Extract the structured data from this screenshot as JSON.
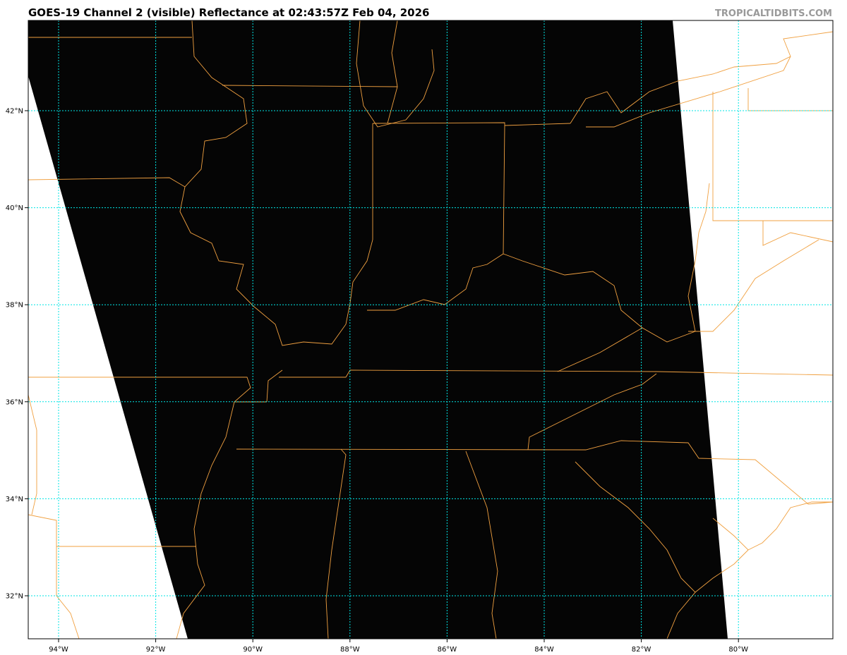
{
  "header": {
    "title": "GOES-19 Channel 2 (visible) Reflectance at 02:43:57Z Feb 04, 2026",
    "credit": "TROPICALTIDBITS.COM"
  },
  "map": {
    "satellite": "GOES-19",
    "channel": "Channel 2 (visible)",
    "longitude_ticks": [
      "94°W",
      "92°W",
      "90°W",
      "88°W",
      "86°W",
      "84°W",
      "82°W",
      "80°W"
    ],
    "latitude_ticks": [
      "42°N",
      "40°N",
      "38°N",
      "36°N",
      "34°N",
      "32°N"
    ],
    "colors": {
      "image_background": "#000000",
      "no_data": "#ffffff",
      "borders": "#f0a040",
      "gridlines": "#00e5e5"
    }
  }
}
